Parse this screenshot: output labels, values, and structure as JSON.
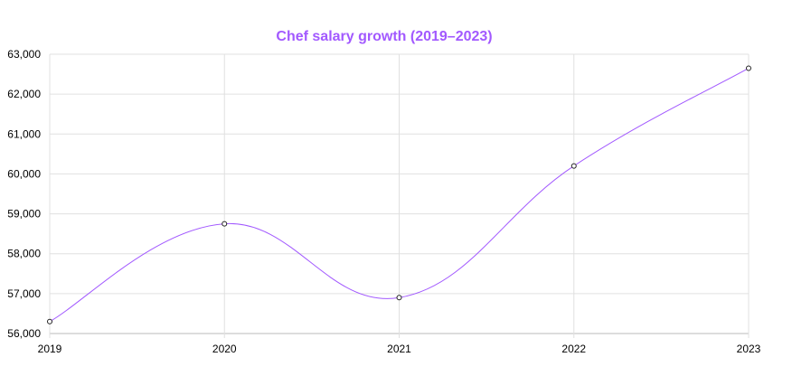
{
  "chart_data": {
    "type": "line",
    "title": "Chef salary growth (2019–2023)",
    "xlabel": "",
    "ylabel": "",
    "categories": [
      "2019",
      "2020",
      "2021",
      "2022",
      "2023"
    ],
    "series": [
      {
        "values": [
          56300,
          58750,
          56900,
          60200,
          62650
        ]
      }
    ],
    "ylim": [
      56000,
      63000
    ],
    "y_ticks": [
      "56,000",
      "57,000",
      "58,000",
      "59,000",
      "60,000",
      "61,000",
      "62,000",
      "63,000"
    ],
    "grid": true,
    "legend": "none",
    "colors": {
      "line": "#a259ff",
      "title": "#a259ff",
      "grid": "#e0e0e0",
      "axis": "#bbbbbb",
      "marker_stroke": "#222222",
      "marker_fill": "#ffffff"
    }
  }
}
